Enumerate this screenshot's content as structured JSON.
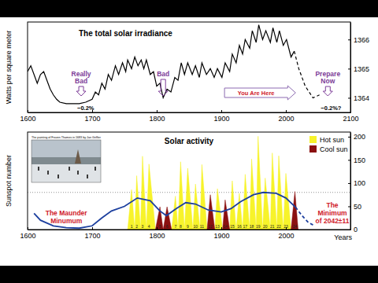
{
  "chart_data": [
    {
      "type": "line",
      "title": "The total solar irradiance",
      "y_label": "Watts per square meter",
      "xlim": [
        1600,
        2100
      ],
      "xticks": [
        1600,
        1700,
        1800,
        1900,
        2000,
        2100
      ],
      "ylim": [
        1363.5,
        1366.6
      ],
      "yticks": [
        1364,
        1365,
        1366
      ],
      "series": [
        {
          "color": "#000000",
          "line_style": "solid",
          "x": [
            1600,
            1605,
            1610,
            1615,
            1620,
            1625,
            1630,
            1635,
            1640,
            1645,
            1650,
            1660,
            1670,
            1680,
            1690,
            1700,
            1705,
            1710,
            1715,
            1720,
            1725,
            1730,
            1736,
            1741,
            1747,
            1752,
            1755,
            1761,
            1766,
            1771,
            1776,
            1780,
            1784,
            1790,
            1795,
            1800,
            1805,
            1810,
            1816,
            1822,
            1828,
            1833,
            1838,
            1843,
            1848,
            1855,
            1860,
            1866,
            1870,
            1877,
            1883,
            1889,
            1894,
            1901,
            1906,
            1913,
            1917,
            1923,
            1928,
            1933,
            1937,
            1944,
            1948,
            1954,
            1958,
            1964,
            1969,
            1976,
            1980,
            1986,
            1990,
            1996,
            2001,
            2008,
            2013
          ],
          "values": [
            1364.9,
            1365.1,
            1364.8,
            1364.5,
            1364.8,
            1364.9,
            1364.6,
            1364.3,
            1364.1,
            1363.95,
            1363.85,
            1363.8,
            1363.8,
            1363.8,
            1363.85,
            1363.95,
            1364.2,
            1364.1,
            1364.5,
            1364.3,
            1364.8,
            1364.6,
            1365.1,
            1364.8,
            1365.2,
            1364.9,
            1365.3,
            1365.0,
            1365.4,
            1365.1,
            1365.3,
            1365.0,
            1365.3,
            1364.8,
            1364.9,
            1364.4,
            1364.5,
            1364.0,
            1364.3,
            1364.2,
            1364.7,
            1364.6,
            1365.2,
            1364.8,
            1365.2,
            1364.8,
            1365.1,
            1364.7,
            1365.2,
            1364.8,
            1365.0,
            1364.7,
            1365.0,
            1364.7,
            1365.2,
            1364.9,
            1365.5,
            1365.2,
            1365.8,
            1365.5,
            1366.0,
            1365.7,
            1366.3,
            1365.9,
            1366.5,
            1366.0,
            1366.3,
            1365.9,
            1366.4,
            1365.9,
            1366.3,
            1365.8,
            1366.0,
            1365.4,
            1365.6
          ]
        },
        {
          "color": "#000000",
          "line_style": "dashed",
          "x": [
            2013,
            2020,
            2030,
            2042,
            2052
          ],
          "values": [
            1365.6,
            1365.0,
            1364.4,
            1364.0,
            1364.1
          ]
        }
      ],
      "arrows": [
        {
          "lines": [
            "Really",
            "Bad"
          ],
          "x": 1683
        },
        {
          "lines": [
            "Bad"
          ],
          "x": 1810
        },
        {
          "lines": [
            "Prepare",
            "Now"
          ],
          "x": 2065
        }
      ],
      "labels": [
        {
          "text": "−0.2%",
          "x": 1690
        },
        {
          "text": "−0.2%?",
          "x": 2070
        }
      ],
      "span_arrow": {
        "text": "You Are Here",
        "x": [
          1905,
          2015
        ]
      }
    },
    {
      "type": "area",
      "title": "Solar activity",
      "x_label": "Years",
      "y_label": "Sunspot number",
      "xlim": [
        1600,
        2100
      ],
      "xticks": [
        1600,
        1700,
        1800,
        1900,
        2000
      ],
      "ylim": [
        0,
        210
      ],
      "yticks": [
        0,
        50,
        100,
        150,
        200
      ],
      "legend": "upper right",
      "threshold": 80,
      "series": [
        {
          "name": "Hot sun",
          "type": "area",
          "color": "#f7f32a",
          "x": [
            1755,
            1761,
            1766,
            null,
            1766,
            1769,
            1775,
            null,
            1775,
            1778,
            1784,
            null,
            1784,
            1788,
            1798,
            null,
            1823,
            1829,
            1833,
            null,
            1833,
            1837,
            1843,
            null,
            1843,
            1848,
            1856,
            null,
            1856,
            1860,
            1867,
            null,
            1867,
            1870,
            1878,
            null,
            1890,
            1894,
            1902,
            null,
            1913,
            1917,
            1923,
            null,
            1923,
            1928,
            1933,
            null,
            1933,
            1937,
            1944,
            null,
            1944,
            1947,
            1954,
            null,
            1954,
            1957,
            1964,
            null,
            1964,
            1968,
            1976,
            null,
            1976,
            1979,
            1986,
            null,
            1986,
            1989,
            1996,
            null,
            1996,
            2000,
            2008
          ],
          "values": [
            0,
            86,
            0,
            null,
            0,
            116,
            0,
            null,
            0,
            158,
            0,
            null,
            0,
            141,
            0,
            null,
            0,
            72,
            0,
            null,
            0,
            146,
            0,
            null,
            0,
            132,
            0,
            null,
            0,
            98,
            0,
            null,
            0,
            140,
            0,
            null,
            0,
            88,
            0,
            null,
            0,
            105,
            0,
            null,
            0,
            78,
            0,
            null,
            0,
            119,
            0,
            null,
            0,
            152,
            0,
            null,
            0,
            201,
            0,
            null,
            0,
            111,
            0,
            null,
            0,
            165,
            0,
            null,
            0,
            159,
            0,
            null,
            0,
            121,
            0
          ]
        },
        {
          "name": "Cool sun",
          "type": "area",
          "color": "#8b1010",
          "x": [
            1798,
            1805,
            1810,
            null,
            1810,
            1816,
            1823,
            null,
            1878,
            1883,
            1890,
            null,
            1902,
            1906,
            1913,
            null,
            2008,
            2014,
            2019
          ],
          "values": [
            0,
            49,
            0,
            null,
            0,
            49,
            0,
            null,
            0,
            75,
            0,
            null,
            0,
            64,
            0,
            null,
            0,
            82,
            0
          ]
        },
        {
          "type": "line",
          "color": "#1c3f9e",
          "line_style": "solid",
          "x": [
            1610,
            1620,
            1640,
            1660,
            1680,
            1700,
            1715,
            1730,
            1750,
            1770,
            1790,
            1805,
            1815,
            1830,
            1845,
            1860,
            1880,
            1900,
            1915,
            1930,
            1950,
            1965,
            1985,
            2000,
            2015
          ],
          "values": [
            35,
            20,
            8,
            4,
            3,
            8,
            25,
            40,
            50,
            68,
            62,
            40,
            30,
            45,
            58,
            55,
            42,
            38,
            45,
            60,
            75,
            80,
            78,
            68,
            48
          ]
        },
        {
          "type": "line",
          "color": "#1c3f9e",
          "line_style": "dashed",
          "x": [
            2015,
            2025,
            2035,
            2042
          ],
          "values": [
            48,
            30,
            15,
            10
          ]
        }
      ],
      "cycles": [
        {
          "number": 1,
          "x": 1761
        },
        {
          "number": 2,
          "x": 1769
        },
        {
          "number": 3,
          "x": 1778
        },
        {
          "number": 4,
          "x": 1788
        },
        {
          "number": 5,
          "x": 1805
        },
        {
          "number": 6,
          "x": 1816
        },
        {
          "number": 7,
          "x": 1829
        },
        {
          "number": 8,
          "x": 1837
        },
        {
          "number": 9,
          "x": 1848
        },
        {
          "number": 10,
          "x": 1860
        },
        {
          "number": 11,
          "x": 1870
        },
        {
          "number": 12,
          "x": 1883
        },
        {
          "number": 13,
          "x": 1894
        },
        {
          "number": 14,
          "x": 1906
        },
        {
          "number": 15,
          "x": 1917
        },
        {
          "number": 16,
          "x": 1928
        },
        {
          "number": 17,
          "x": 1937
        },
        {
          "number": 18,
          "x": 1947
        },
        {
          "number": 19,
          "x": 1957
        },
        {
          "number": 20,
          "x": 1968
        },
        {
          "number": 21,
          "x": 1979
        },
        {
          "number": 22,
          "x": 1989
        },
        {
          "number": 23,
          "x": 2000
        },
        {
          "number": 24,
          "x": 2014
        }
      ],
      "labels": [
        {
          "lines": [
            "The Maunder",
            "Minumum"
          ],
          "x": 1660
        },
        {
          "lines": [
            "The",
            "Minimum",
            "of 2042±11"
          ],
          "x": 2072
        }
      ],
      "inset": {
        "caption": "The painting of Frozen Thames in 1683 by Jan Griffier"
      }
    }
  ]
}
